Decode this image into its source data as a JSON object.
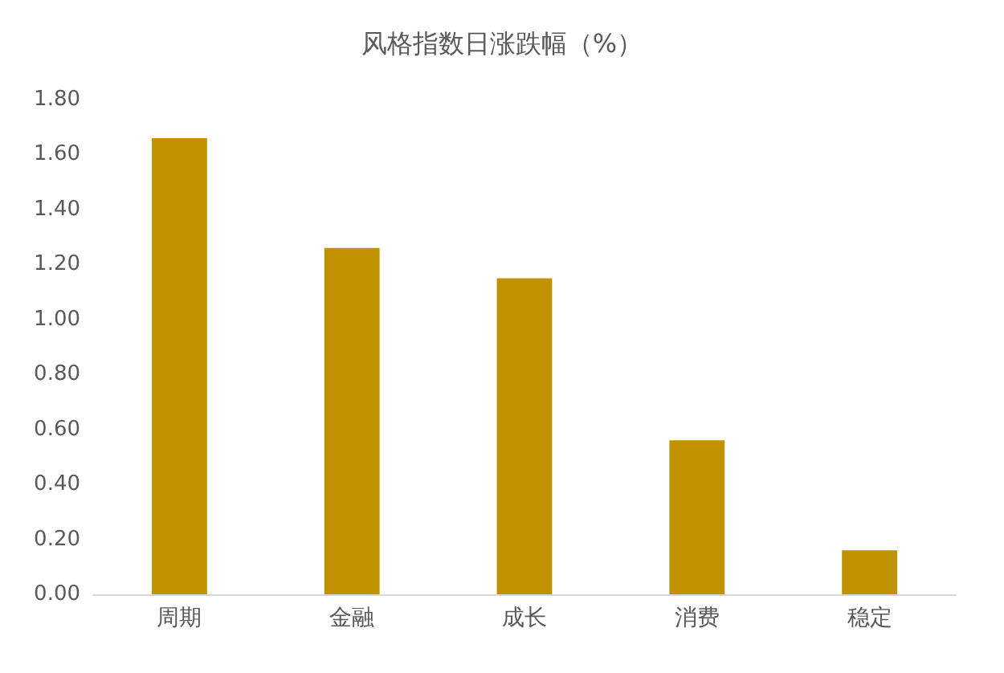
{
  "chart_data": {
    "type": "bar",
    "title": "风格指数日涨跌幅（%）",
    "categories": [
      "周期",
      "金融",
      "成长",
      "消费",
      "稳定"
    ],
    "values": [
      1.66,
      1.26,
      1.15,
      0.56,
      0.16
    ],
    "color": "#c09100",
    "ylim": [
      0,
      1.8
    ],
    "yticks": [
      {
        "value": 0,
        "label": "0.00"
      },
      {
        "value": 0.2,
        "label": "0.20"
      },
      {
        "value": 0.4,
        "label": "0.40"
      },
      {
        "value": 0.6,
        "label": "0.60"
      },
      {
        "value": 0.8,
        "label": "0.80"
      },
      {
        "value": 1.0,
        "label": "1.00"
      },
      {
        "value": 1.2,
        "label": "1.20"
      },
      {
        "value": 1.4,
        "label": "1.40"
      },
      {
        "value": 1.6,
        "label": "1.60"
      },
      {
        "value": 1.8,
        "label": "1.80"
      }
    ],
    "grid": false
  }
}
